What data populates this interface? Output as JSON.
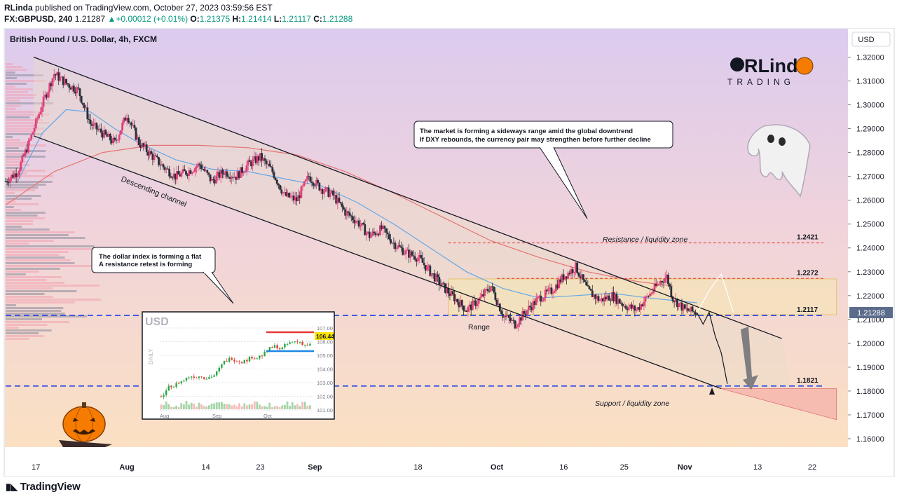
{
  "header": {
    "publisher": "RLinda",
    "published_text": "published on TradingView.com, October 27, 2023 03:59:56 EST",
    "symbol": "FX:GBPUSD, 240",
    "last_price": "1.21287",
    "change_arrow": "▲",
    "change": "+0.00012 (+0.01%)",
    "open_label": "O:",
    "open": "1.21375",
    "high_label": "H:",
    "high": "1.21414",
    "low_label": "L:",
    "low": "1.21117",
    "close_label": "C:",
    "close": "1.21288"
  },
  "chart_data": {
    "type": "candlestick",
    "title": "British Pound / U.S. Dollar, 4h, FXCM",
    "currency": "USD",
    "y_axis": {
      "min": 1.155,
      "max": 1.3225,
      "ticks": [
        1.32,
        1.31,
        1.3,
        1.29,
        1.28,
        1.27,
        1.26,
        1.25,
        1.24,
        1.23,
        1.22,
        1.21,
        1.2,
        1.19,
        1.18,
        1.17,
        1.16
      ],
      "tick_labels": [
        "1.32000",
        "1.31000",
        "1.30000",
        "1.29000",
        "1.28000",
        "1.27000",
        "1.26000",
        "1.25000",
        "1.24000",
        "1.23000",
        "1.22000",
        "1.21000",
        "1.20000",
        "1.19000",
        "1.18000",
        "1.17000",
        "1.16000"
      ],
      "current_price_label": "1.21288",
      "current_price": 1.21288
    },
    "x_axis": {
      "day_min": 12,
      "day_max": 126,
      "ticks": [
        {
          "day": 17,
          "label": "17"
        },
        {
          "day": 32,
          "label": "Aug"
        },
        {
          "day": 45,
          "label": "14"
        },
        {
          "day": 54,
          "label": "23"
        },
        {
          "day": 63,
          "label": "Sep"
        },
        {
          "day": 80,
          "label": "18"
        },
        {
          "day": 93,
          "label": "Oct"
        },
        {
          "day": 104,
          "label": "16"
        },
        {
          "day": 114,
          "label": "25"
        },
        {
          "day": 124,
          "label": "Nov"
        },
        {
          "day": 136,
          "label": "13"
        },
        {
          "day": 145,
          "label": "22"
        }
      ]
    },
    "price_path": [
      [
        12,
        1.268
      ],
      [
        14,
        1.272
      ],
      [
        16,
        1.285
      ],
      [
        18,
        1.3
      ],
      [
        20,
        1.313
      ],
      [
        22,
        1.309
      ],
      [
        24,
        1.306
      ],
      [
        26,
        1.292
      ],
      [
        28,
        1.288
      ],
      [
        30,
        1.284
      ],
      [
        32,
        1.296
      ],
      [
        34,
        1.284
      ],
      [
        36,
        1.279
      ],
      [
        38,
        1.274
      ],
      [
        40,
        1.27
      ],
      [
        42,
        1.272
      ],
      [
        44,
        1.275
      ],
      [
        46,
        1.268
      ],
      [
        48,
        1.272
      ],
      [
        50,
        1.27
      ],
      [
        52,
        1.275
      ],
      [
        54,
        1.278
      ],
      [
        56,
        1.272
      ],
      [
        58,
        1.262
      ],
      [
        60,
        1.26
      ],
      [
        62,
        1.27
      ],
      [
        64,
        1.265
      ],
      [
        66,
        1.262
      ],
      [
        68,
        1.255
      ],
      [
        70,
        1.251
      ],
      [
        72,
        1.245
      ],
      [
        74,
        1.248
      ],
      [
        76,
        1.242
      ],
      [
        78,
        1.238
      ],
      [
        80,
        1.236
      ],
      [
        82,
        1.23
      ],
      [
        84,
        1.224
      ],
      [
        86,
        1.219
      ],
      [
        88,
        1.214
      ],
      [
        90,
        1.218
      ],
      [
        92,
        1.224
      ],
      [
        94,
        1.212
      ],
      [
        96,
        1.208
      ],
      [
        98,
        1.214
      ],
      [
        100,
        1.219
      ],
      [
        102,
        1.222
      ],
      [
        104,
        1.228
      ],
      [
        106,
        1.232
      ],
      [
        108,
        1.222
      ],
      [
        110,
        1.218
      ],
      [
        112,
        1.22
      ],
      [
        114,
        1.216
      ],
      [
        116,
        1.214
      ],
      [
        118,
        1.22
      ],
      [
        120,
        1.226
      ],
      [
        121,
        1.228
      ],
      [
        122,
        1.219
      ],
      [
        124,
        1.214
      ],
      [
        126,
        1.2128
      ]
    ],
    "ma_fast": [
      [
        14,
        1.268
      ],
      [
        18,
        1.288
      ],
      [
        22,
        1.298
      ],
      [
        26,
        1.297
      ],
      [
        30,
        1.29
      ],
      [
        34,
        1.284
      ],
      [
        40,
        1.277
      ],
      [
        46,
        1.273
      ],
      [
        52,
        1.272
      ],
      [
        58,
        1.269
      ],
      [
        64,
        1.266
      ],
      [
        70,
        1.259
      ],
      [
        76,
        1.25
      ],
      [
        82,
        1.24
      ],
      [
        88,
        1.23
      ],
      [
        94,
        1.223
      ],
      [
        100,
        1.219
      ],
      [
        106,
        1.22
      ],
      [
        112,
        1.221
      ],
      [
        118,
        1.219
      ],
      [
        126,
        1.217
      ]
    ],
    "ma_slow": [
      [
        12,
        1.258
      ],
      [
        20,
        1.272
      ],
      [
        28,
        1.28
      ],
      [
        36,
        1.283
      ],
      [
        44,
        1.283
      ],
      [
        52,
        1.282
      ],
      [
        60,
        1.279
      ],
      [
        68,
        1.272
      ],
      [
        76,
        1.263
      ],
      [
        84,
        1.253
      ],
      [
        92,
        1.243
      ],
      [
        100,
        1.236
      ],
      [
        108,
        1.23
      ],
      [
        116,
        1.226
      ],
      [
        122,
        1.224
      ]
    ],
    "channel_upper": [
      [
        12,
        1.32
      ],
      [
        140,
        1.202
      ]
    ],
    "channel_lower": [
      [
        12,
        1.287
      ],
      [
        130,
        1.181
      ]
    ],
    "range_box": {
      "day_from": 85,
      "day_to": 149,
      "top": 1.227,
      "bottom": 1.212
    },
    "resistance_liquidity_box": {
      "day_from": 130,
      "day_to": 149,
      "top": 1.181,
      "bottom": 1.168
    },
    "levels": [
      {
        "value": 1.2421,
        "label": "1.2421",
        "style": "red-dashed"
      },
      {
        "value": 1.2272,
        "label": "1.2272",
        "style": "red-dashed"
      },
      {
        "value": 1.2117,
        "label": "1.2117",
        "style": "blue-dashed"
      },
      {
        "value": 1.1821,
        "label": "1.1821",
        "style": "blue-dashed"
      }
    ],
    "forecast_white": [
      [
        126,
        1.2128
      ],
      [
        128,
        1.222
      ],
      [
        130,
        1.229
      ],
      [
        132,
        1.213
      ]
    ],
    "forecast_black": [
      [
        126,
        1.2128
      ],
      [
        127,
        1.208
      ],
      [
        128,
        1.213
      ],
      [
        129,
        1.203
      ],
      [
        130,
        1.196
      ],
      [
        131,
        1.183
      ]
    ],
    "annotations": {
      "descending_channel": "Descending channel",
      "range": "Range",
      "resistance_zone": "Resistance / liquidity zone",
      "support_zone": "Support / liquidity zone",
      "callout_main_line1": "The market is forming a sideways range amid the global downtrend",
      "callout_main_line2": "If DXY rebounds, the currency pair may strengthen before further decline",
      "callout_dxy_line1": "The dollar index is forming a flat",
      "callout_dxy_line2": "A resistance retest is forming"
    },
    "inset": {
      "title": "USD",
      "side_label": "DAILY",
      "y_ticks": [
        "107.00",
        "106.00",
        "105.00",
        "104.00",
        "103.00",
        "102.00",
        "101.00"
      ],
      "price_label": "106.44",
      "x_labels": [
        "Aug",
        "Sep",
        "Oct"
      ]
    },
    "logo": {
      "line1": "RLinda",
      "line2": "TRADING"
    }
  },
  "footer": {
    "brand": "TradingView"
  }
}
